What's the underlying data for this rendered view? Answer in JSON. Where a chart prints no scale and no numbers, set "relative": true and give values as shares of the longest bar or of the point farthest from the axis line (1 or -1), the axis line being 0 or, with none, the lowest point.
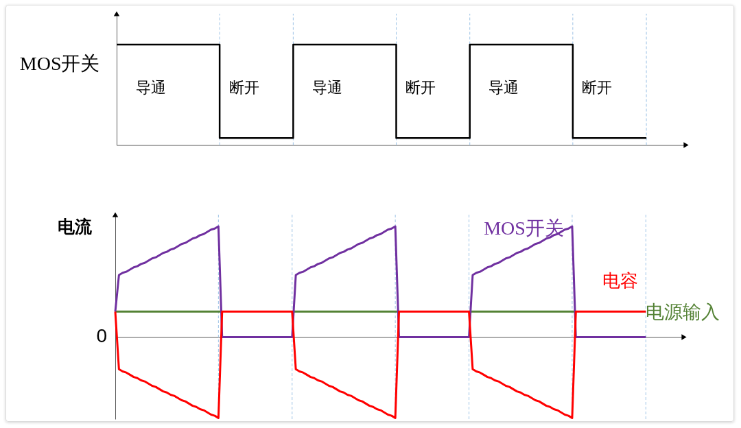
{
  "chart_data": [
    {
      "type": "step",
      "relative": true,
      "ylabel": "MOS开关",
      "grid": "x",
      "categories": [
        null,
        null,
        null,
        null,
        null,
        null,
        null,
        null,
        null,
        null,
        null,
        null,
        null,
        null,
        null,
        null,
        null,
        null,
        null,
        null,
        null,
        null,
        null,
        null,
        null,
        null,
        null,
        null,
        null,
        null,
        null,
        null,
        null,
        null,
        null,
        null,
        null
      ],
      "values": [
        1,
        1,
        1,
        1,
        1,
        1,
        1,
        0.07,
        0.07,
        0.07,
        0.07,
        0.07,
        1,
        1,
        1,
        1,
        1,
        1,
        1,
        0.07,
        0.07,
        0.07,
        0.07,
        0.07,
        1,
        1,
        1,
        1,
        1,
        1,
        1,
        0.07,
        0.07,
        0.07,
        0.07,
        0.07,
        0.07
      ],
      "color": "#000000",
      "annotations": [
        "导通",
        "断开",
        "导通",
        "断开",
        "导通",
        "断开"
      ]
    },
    {
      "type": "line",
      "relative": true,
      "ylabel": "电流",
      "grid": "x",
      "annotations": [
        "0"
      ],
      "categories": [
        null,
        null,
        null,
        null,
        null,
        null,
        null,
        null,
        null,
        null,
        null,
        null,
        null,
        null,
        null,
        null,
        null,
        null,
        null,
        null,
        null,
        null,
        null,
        null,
        null,
        null,
        null,
        null,
        null,
        null,
        null,
        null,
        null,
        null,
        null,
        null,
        null,
        null,
        null,
        null,
        null,
        null,
        null,
        null,
        null,
        null,
        null,
        null,
        null,
        null,
        null,
        null,
        null,
        null,
        null,
        null,
        null,
        null,
        null,
        null,
        null,
        null,
        null,
        null,
        null,
        null,
        null,
        null,
        null,
        null,
        null,
        null,
        null,
        null,
        null,
        null,
        null,
        null,
        null,
        null,
        null,
        null,
        null,
        null,
        null,
        null,
        null,
        null,
        null,
        null,
        null,
        null,
        null,
        null,
        null,
        null,
        null,
        null,
        null,
        null,
        null,
        null,
        null,
        null,
        null,
        null,
        null,
        null,
        null,
        null,
        null,
        null,
        null,
        null,
        null,
        null,
        null,
        null,
        null,
        null,
        null,
        null,
        null,
        null,
        null,
        null,
        null,
        null,
        null,
        null,
        null,
        null,
        null,
        null,
        null,
        null,
        null,
        null,
        null,
        null,
        null,
        null,
        null,
        null,
        null
      ],
      "series": [
        {
          "name": "电源输入",
          "color": "#548235",
          "values": [
            0.23,
            0.23,
            0.23,
            0.23,
            0.23,
            0.23,
            0.23,
            0.23,
            0.23,
            0.23,
            0.23,
            0.23,
            0.23,
            0.23,
            0.23,
            0.23,
            0.23,
            0.23,
            0.23,
            0.23,
            0.23,
            0.23,
            0.23,
            0.23,
            0.23,
            0.23,
            0.23,
            0.23,
            0.23,
            0.23,
            null,
            null,
            null,
            null,
            null,
            null,
            null,
            null,
            null,
            null,
            null,
            null,
            null,
            null,
            null,
            null,
            null,
            null,
            0.23,
            0.23,
            0.23,
            0.23,
            0.23,
            0.23,
            0.23,
            0.23,
            0.23,
            0.23,
            0.23,
            0.23,
            0.23,
            0.23,
            0.23,
            0.23,
            0.23,
            0.23,
            0.23,
            0.23,
            0.23,
            0.23,
            0.23,
            0.23,
            0.23,
            0.23,
            0.23,
            0.23,
            0.23,
            0.23,
            null,
            null,
            null,
            null,
            null,
            null,
            null,
            null,
            null,
            null,
            null,
            null,
            null,
            null,
            null,
            null,
            null,
            null,
            0.23,
            0.23,
            0.23,
            0.23,
            0.23,
            0.23,
            0.23,
            0.23,
            0.23,
            0.23,
            0.23,
            0.23,
            0.23,
            0.23,
            0.23,
            0.23,
            0.23,
            0.23,
            0.23,
            0.23,
            0.23,
            0.23,
            0.23,
            0.23,
            0.23,
            0.23,
            0.23,
            0.23,
            0.23,
            0.23,
            null,
            null,
            null,
            null,
            null,
            null,
            null,
            null,
            null,
            null,
            null,
            null,
            null,
            null,
            null,
            null,
            null,
            null,
            null
          ]
        },
        {
          "name": "MOS开关",
          "color": "#7030a0",
          "values": [
            0.23,
            0.56,
            0.58,
            0.59,
            0.61,
            0.63,
            0.64,
            0.66,
            0.67,
            0.69,
            0.71,
            0.72,
            0.74,
            0.76,
            0.77,
            0.79,
            0.8,
            0.82,
            0.84,
            0.85,
            0.87,
            0.89,
            0.9,
            0.92,
            0.93,
            0.95,
            0.97,
            0.98,
            1,
            0,
            0,
            0,
            0,
            0,
            0,
            0,
            0,
            0,
            0,
            0,
            0,
            0,
            0,
            0,
            0,
            0,
            0,
            0,
            0,
            0.56,
            0.58,
            0.59,
            0.61,
            0.63,
            0.64,
            0.66,
            0.67,
            0.69,
            0.71,
            0.72,
            0.74,
            0.76,
            0.77,
            0.79,
            0.8,
            0.82,
            0.84,
            0.85,
            0.87,
            0.89,
            0.9,
            0.92,
            0.93,
            0.95,
            0.97,
            0.98,
            1,
            0,
            0,
            0,
            0,
            0,
            0,
            0,
            0,
            0,
            0,
            0,
            0,
            0,
            0,
            0,
            0,
            0,
            0,
            0,
            0,
            0.56,
            0.58,
            0.59,
            0.61,
            0.63,
            0.64,
            0.66,
            0.67,
            0.69,
            0.71,
            0.72,
            0.74,
            0.76,
            0.77,
            0.79,
            0.8,
            0.82,
            0.84,
            0.85,
            0.87,
            0.89,
            0.9,
            0.92,
            0.93,
            0.95,
            0.97,
            0.98,
            1,
            0,
            0,
            0,
            0,
            0,
            0,
            0,
            0,
            0,
            0,
            0,
            0,
            0,
            0,
            0,
            0,
            0,
            0,
            0,
            0
          ]
        },
        {
          "name": "电容",
          "color": "#ff0000",
          "values": [
            0.23,
            -0.29,
            -0.31,
            -0.32,
            -0.34,
            -0.36,
            -0.37,
            -0.39,
            -0.4,
            -0.42,
            -0.44,
            -0.45,
            -0.47,
            -0.49,
            -0.5,
            -0.52,
            -0.53,
            -0.55,
            -0.57,
            -0.58,
            -0.6,
            -0.62,
            -0.63,
            -0.65,
            -0.66,
            -0.68,
            -0.7,
            -0.71,
            -0.73,
            0.23,
            0.23,
            0.23,
            0.23,
            0.23,
            0.23,
            0.23,
            0.23,
            0.23,
            0.23,
            0.23,
            0.23,
            0.23,
            0.23,
            0.23,
            0.23,
            0.23,
            0.23,
            0.23,
            0.23,
            -0.29,
            -0.31,
            -0.32,
            -0.34,
            -0.36,
            -0.37,
            -0.39,
            -0.4,
            -0.42,
            -0.44,
            -0.45,
            -0.47,
            -0.49,
            -0.5,
            -0.52,
            -0.53,
            -0.55,
            -0.57,
            -0.58,
            -0.6,
            -0.62,
            -0.63,
            -0.65,
            -0.66,
            -0.68,
            -0.7,
            -0.71,
            -0.73,
            0.23,
            0.23,
            0.23,
            0.23,
            0.23,
            0.23,
            0.23,
            0.23,
            0.23,
            0.23,
            0.23,
            0.23,
            0.23,
            0.23,
            0.23,
            0.23,
            0.23,
            0.23,
            0.23,
            0.23,
            -0.29,
            -0.31,
            -0.32,
            -0.34,
            -0.36,
            -0.37,
            -0.39,
            -0.4,
            -0.42,
            -0.44,
            -0.45,
            -0.47,
            -0.49,
            -0.5,
            -0.52,
            -0.53,
            -0.55,
            -0.57,
            -0.58,
            -0.6,
            -0.62,
            -0.63,
            -0.65,
            -0.66,
            -0.68,
            -0.7,
            -0.71,
            -0.73,
            0.23,
            0.23,
            0.23,
            0.23,
            0.23,
            0.23,
            0.23,
            0.23,
            0.23,
            0.23,
            0.23,
            0.23,
            0.23,
            0.23,
            0.23,
            0.23,
            0.23,
            0.23,
            0.23,
            0.23
          ]
        }
      ]
    }
  ]
}
